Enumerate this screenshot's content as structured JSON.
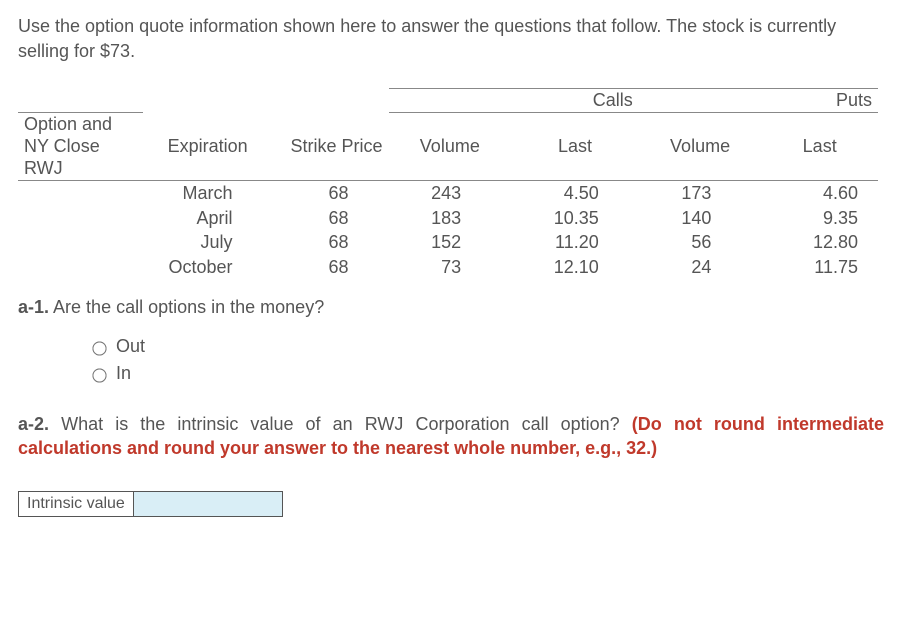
{
  "intro": "Use the option quote information shown here to answer the questions that follow. The stock is currently selling for $73.",
  "table": {
    "callsLabel": "Calls",
    "putsLabel": "Puts",
    "col1a": "Option and",
    "col1b": "NY Close",
    "col1c": "RWJ",
    "col2": "Expiration",
    "col3": "Strike Price",
    "col4": "Volume",
    "col5": "Last",
    "col6": "Volume",
    "col7": "Last",
    "rows": [
      {
        "exp": "March",
        "strike": "68",
        "cvol": "243",
        "clast": "4.50",
        "pvol": "173",
        "plast": "4.60"
      },
      {
        "exp": "April",
        "strike": "68",
        "cvol": "183",
        "clast": "10.35",
        "pvol": "140",
        "plast": "9.35"
      },
      {
        "exp": "July",
        "strike": "68",
        "cvol": "152",
        "clast": "11.20",
        "pvol": "56",
        "plast": "12.80"
      },
      {
        "exp": "October",
        "strike": "68",
        "cvol": "73",
        "clast": "12.10",
        "pvol": "24",
        "plast": "11.75"
      }
    ]
  },
  "q1": {
    "label": "a-1.",
    "text": "Are the call options in the money?"
  },
  "radios": {
    "out": "Out",
    "in": "In"
  },
  "q2": {
    "label": "a-2.",
    "text": "What is the intrinsic value of an RWJ Corporation call option?",
    "hint": "(Do not round intermediate calculations and round your answer to the nearest whole number, e.g., 32.)"
  },
  "answer": {
    "label": "Intrinsic value",
    "value": ""
  }
}
